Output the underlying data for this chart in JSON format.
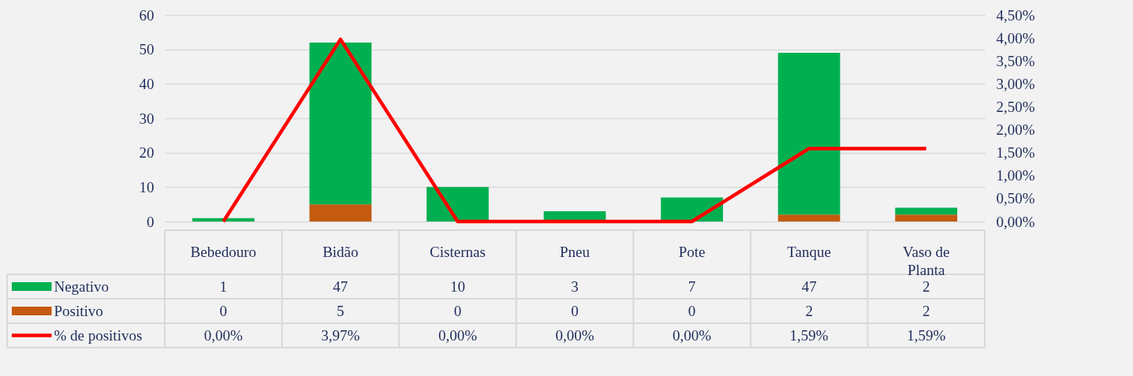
{
  "chart_data": {
    "type": "bar",
    "stacked": true,
    "categories": [
      "Bebedouro",
      "Bidão",
      "Cisternas",
      "Pneu",
      "Pote",
      "Tanque",
      "Vaso de Planta"
    ],
    "series": [
      {
        "name": "Positivo",
        "color": "#c55a11",
        "values": [
          0,
          5,
          0,
          0,
          0,
          2,
          2
        ],
        "value_labels": [
          "0",
          "5",
          "0",
          "0",
          "0",
          "2",
          "2"
        ]
      },
      {
        "name": "Negativo",
        "color": "#00b050",
        "values": [
          1,
          47,
          10,
          3,
          7,
          47,
          2
        ],
        "value_labels": [
          "1",
          "47",
          "10",
          "3",
          "7",
          "47",
          "2"
        ]
      },
      {
        "name": "% de positivos",
        "type": "line",
        "axis": "y2",
        "color": "#ff0000",
        "values": [
          0,
          3.97,
          0,
          0,
          0,
          1.59,
          1.59
        ],
        "value_labels": [
          "0,00%",
          "3,97%",
          "0,00%",
          "0,00%",
          "0,00%",
          "1,59%",
          "1,59%"
        ]
      }
    ],
    "ylim": [
      0,
      60
    ],
    "yticks": [
      0,
      10,
      20,
      30,
      40,
      50,
      60
    ],
    "y2lim": [
      0,
      4.5
    ],
    "y2ticks": [
      {
        "value": 0,
        "label": "0,00%"
      },
      {
        "value": 0.5,
        "label": "0,50%"
      },
      {
        "value": 1,
        "label": "1,00%"
      },
      {
        "value": 1.5,
        "label": "1,50%"
      },
      {
        "value": 2,
        "label": "2,00%"
      },
      {
        "value": 2.5,
        "label": "2,50%"
      },
      {
        "value": 3,
        "label": "3,00%"
      },
      {
        "value": 3.5,
        "label": "3,50%"
      },
      {
        "value": 4,
        "label": "4,00%"
      },
      {
        "value": 4.5,
        "label": "4,50%"
      }
    ],
    "grid": "y",
    "legend": "bottom left",
    "marker": "none",
    "line_style": "solid"
  }
}
